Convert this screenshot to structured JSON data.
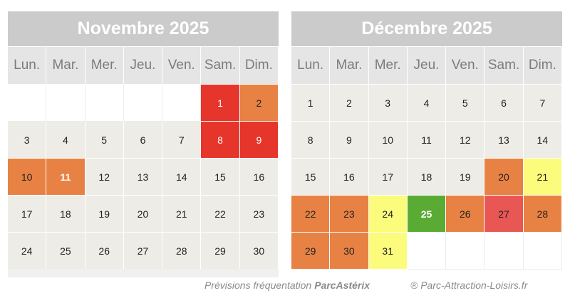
{
  "calendars": [
    {
      "title": "Novembre 2025",
      "weekdays": [
        "Lun.",
        "Mar.",
        "Mer.",
        "Jeu.",
        "Ven.",
        "Sam.",
        "Dim."
      ],
      "offset": 5,
      "days": [
        {
          "d": "1",
          "level": "red"
        },
        {
          "d": "2",
          "level": "orange"
        },
        {
          "d": "3",
          "level": "normal"
        },
        {
          "d": "4",
          "level": "normal"
        },
        {
          "d": "5",
          "level": "normal"
        },
        {
          "d": "6",
          "level": "normal"
        },
        {
          "d": "7",
          "level": "normal"
        },
        {
          "d": "8",
          "level": "red"
        },
        {
          "d": "9",
          "level": "red"
        },
        {
          "d": "10",
          "level": "orange"
        },
        {
          "d": "11",
          "level": "orange-white"
        },
        {
          "d": "12",
          "level": "normal"
        },
        {
          "d": "13",
          "level": "normal"
        },
        {
          "d": "14",
          "level": "normal"
        },
        {
          "d": "15",
          "level": "normal"
        },
        {
          "d": "16",
          "level": "normal"
        },
        {
          "d": "17",
          "level": "normal"
        },
        {
          "d": "18",
          "level": "normal"
        },
        {
          "d": "19",
          "level": "normal"
        },
        {
          "d": "20",
          "level": "normal"
        },
        {
          "d": "21",
          "level": "normal"
        },
        {
          "d": "22",
          "level": "normal"
        },
        {
          "d": "23",
          "level": "normal"
        },
        {
          "d": "24",
          "level": "normal"
        },
        {
          "d": "25",
          "level": "normal"
        },
        {
          "d": "26",
          "level": "normal"
        },
        {
          "d": "27",
          "level": "normal"
        },
        {
          "d": "28",
          "level": "normal"
        },
        {
          "d": "29",
          "level": "normal"
        },
        {
          "d": "30",
          "level": "normal"
        }
      ]
    },
    {
      "title": "Décembre 2025",
      "weekdays": [
        "Lun.",
        "Mar.",
        "Mer.",
        "Jeu.",
        "Ven.",
        "Sam.",
        "Dim."
      ],
      "offset": 0,
      "days": [
        {
          "d": "1",
          "level": "normal"
        },
        {
          "d": "2",
          "level": "normal"
        },
        {
          "d": "3",
          "level": "normal"
        },
        {
          "d": "4",
          "level": "normal"
        },
        {
          "d": "5",
          "level": "normal"
        },
        {
          "d": "6",
          "level": "normal"
        },
        {
          "d": "7",
          "level": "normal"
        },
        {
          "d": "8",
          "level": "normal"
        },
        {
          "d": "9",
          "level": "normal"
        },
        {
          "d": "10",
          "level": "normal"
        },
        {
          "d": "11",
          "level": "normal"
        },
        {
          "d": "12",
          "level": "normal"
        },
        {
          "d": "13",
          "level": "normal"
        },
        {
          "d": "14",
          "level": "normal"
        },
        {
          "d": "15",
          "level": "normal"
        },
        {
          "d": "16",
          "level": "normal"
        },
        {
          "d": "17",
          "level": "normal"
        },
        {
          "d": "18",
          "level": "normal"
        },
        {
          "d": "19",
          "level": "normal"
        },
        {
          "d": "20",
          "level": "orange"
        },
        {
          "d": "21",
          "level": "yellow"
        },
        {
          "d": "22",
          "level": "orange"
        },
        {
          "d": "23",
          "level": "orange"
        },
        {
          "d": "24",
          "level": "yellow"
        },
        {
          "d": "25",
          "level": "green"
        },
        {
          "d": "26",
          "level": "orange"
        },
        {
          "d": "27",
          "level": "pink"
        },
        {
          "d": "28",
          "level": "orange"
        },
        {
          "d": "29",
          "level": "orange"
        },
        {
          "d": "30",
          "level": "orange"
        },
        {
          "d": "31",
          "level": "yellow"
        }
      ]
    }
  ],
  "credit": {
    "text": "Prévisions fréquentation",
    "brand": "ParcAstérix",
    "copyright": "® Parc-Attraction-Loisirs.fr"
  },
  "colors": {
    "red": "#e6352b",
    "pink": "#e95754",
    "orange": "#e88244",
    "yellow": "#fcfc7c",
    "green": "#5aab34",
    "normal": "#eeece6"
  }
}
